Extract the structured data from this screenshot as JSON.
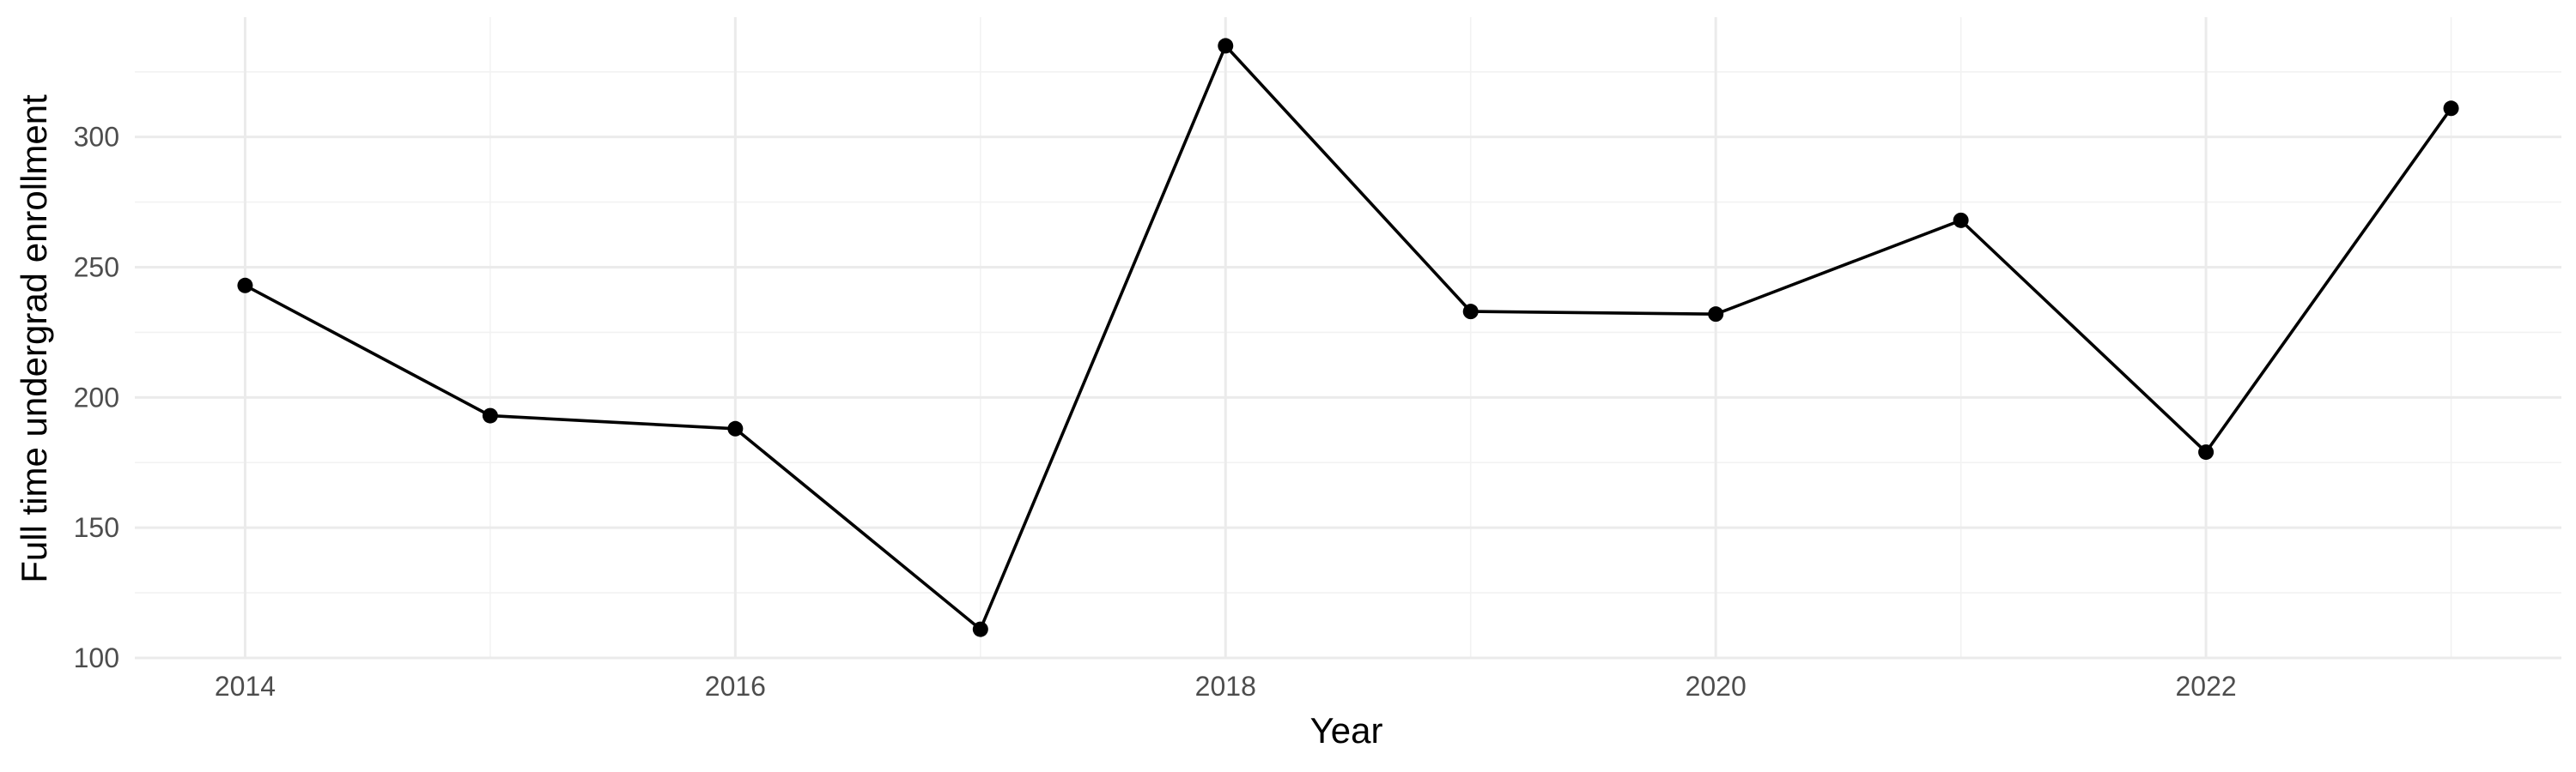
{
  "chart_data": {
    "type": "line",
    "title": "",
    "xlabel": "Year",
    "ylabel": "Full time undergrad enrollment",
    "x": [
      2014,
      2015,
      2016,
      2017,
      2018,
      2019,
      2020,
      2021,
      2022,
      2023
    ],
    "values": [
      243,
      193,
      188,
      111,
      335,
      233,
      232,
      268,
      179,
      311
    ],
    "xlim": [
      2013.55,
      2023.45
    ],
    "ylim": [
      100,
      346
    ],
    "x_ticks": [
      2014,
      2016,
      2018,
      2020,
      2022
    ],
    "x_tick_labels": [
      "2014",
      "2016",
      "2018",
      "2020",
      "2022"
    ],
    "y_ticks": [
      100,
      150,
      200,
      250,
      300
    ],
    "y_tick_labels": [
      "100",
      "150",
      "200",
      "250",
      "300"
    ],
    "grid": true,
    "legend": "none",
    "line_color": "#000000",
    "point_color": "#000000",
    "grid_color": "#ebebeb"
  }
}
